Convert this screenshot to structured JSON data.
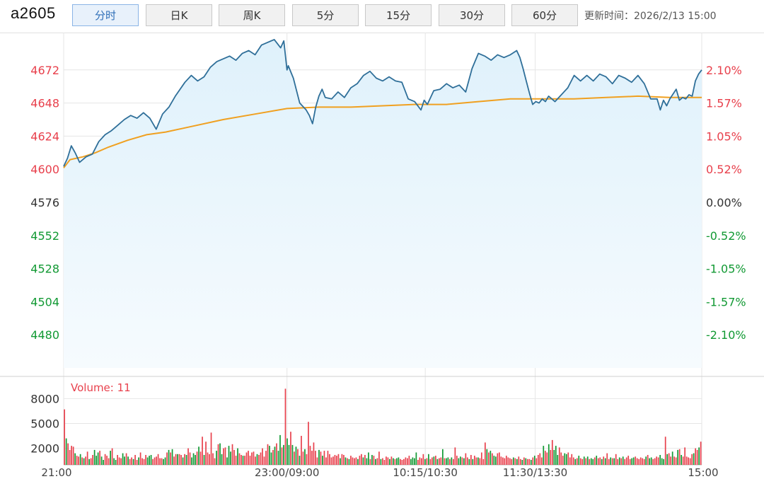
{
  "toolbar": {
    "symbol": "a2605",
    "tabs": [
      {
        "label": "分时",
        "active": true
      },
      {
        "label": "日K",
        "active": false
      },
      {
        "label": "周K",
        "active": false
      },
      {
        "label": "5分",
        "active": false
      },
      {
        "label": "15分",
        "active": false
      },
      {
        "label": "30分",
        "active": false
      },
      {
        "label": "60分",
        "active": false
      }
    ],
    "update_time": "更新时间：2026/2/13 15:00"
  },
  "colors": {
    "up": "#e8404c",
    "down": "#119933",
    "neutral": "#333333",
    "price_line": "#2f6f99",
    "avg_line": "#f0a020",
    "area_fill_top": "#dff1fb",
    "area_fill_bottom": "#f6fbfe",
    "grid": "#e6e6e6"
  },
  "chart_data": [
    {
      "type": "line",
      "title": "",
      "prev_close": 4576,
      "ylim": [
        4456,
        4696
      ],
      "y_ticks": [
        "4672",
        "4648",
        "4624",
        "4600",
        "4576",
        "4552",
        "4528",
        "4504",
        "4480"
      ],
      "y_tick_values": [
        4672,
        4648,
        4624,
        4600,
        4576,
        4552,
        4528,
        4504,
        4480
      ],
      "pct_ticks": [
        "2.10%",
        "1.57%",
        "1.05%",
        "0.52%",
        "0.00%",
        "-0.52%",
        "-1.05%",
        "-1.57%",
        "-2.10%"
      ],
      "x_ticks": [
        "21:00",
        "23:00/09:00",
        "10:15/10:30",
        "11:30/13:30",
        "15:00"
      ],
      "x_tick_positions": [
        0,
        0.35,
        0.5667,
        0.7389,
        1.0
      ],
      "series": [
        {
          "role": "price",
          "x": [
            0,
            0.006,
            0.012,
            0.018,
            0.025,
            0.035,
            0.045,
            0.055,
            0.065,
            0.075,
            0.085,
            0.095,
            0.105,
            0.115,
            0.125,
            0.135,
            0.145,
            0.155,
            0.165,
            0.175,
            0.19,
            0.2,
            0.21,
            0.22,
            0.23,
            0.24,
            0.25,
            0.26,
            0.27,
            0.28,
            0.29,
            0.3,
            0.31,
            0.32,
            0.33,
            0.34,
            0.345,
            0.35,
            0.352,
            0.36,
            0.37,
            0.38,
            0.385,
            0.39,
            0.395,
            0.4,
            0.405,
            0.41,
            0.42,
            0.43,
            0.44,
            0.45,
            0.46,
            0.47,
            0.48,
            0.49,
            0.5,
            0.51,
            0.52,
            0.53,
            0.54,
            0.55,
            0.56,
            0.565,
            0.57,
            0.58,
            0.59,
            0.6,
            0.61,
            0.62,
            0.63,
            0.64,
            0.65,
            0.66,
            0.67,
            0.68,
            0.69,
            0.7,
            0.71,
            0.715,
            0.72,
            0.725,
            0.73,
            0.735,
            0.74,
            0.745,
            0.75,
            0.755,
            0.76,
            0.77,
            0.78,
            0.79,
            0.8,
            0.81,
            0.82,
            0.83,
            0.84,
            0.85,
            0.86,
            0.87,
            0.88,
            0.89,
            0.9,
            0.91,
            0.92,
            0.93,
            0.935,
            0.94,
            0.945,
            0.95,
            0.96,
            0.965,
            0.97,
            0.975,
            0.98,
            0.985,
            0.99,
            0.995,
            1.0
          ],
          "values": [
            4602,
            4608,
            4617,
            4612,
            4605,
            4609,
            4611,
            4620,
            4625,
            4628,
            4632,
            4636,
            4639,
            4637,
            4641,
            4637,
            4629,
            4640,
            4645,
            4653,
            4663,
            4668,
            4664,
            4667,
            4674,
            4678,
            4680,
            4682,
            4679,
            4684,
            4686,
            4683,
            4690,
            4692,
            4694,
            4688,
            4693,
            4672,
            4675,
            4666,
            4648,
            4643,
            4639,
            4633,
            4645,
            4653,
            4658,
            4652,
            4651,
            4656,
            4652,
            4659,
            4662,
            4668,
            4671,
            4666,
            4664,
            4667,
            4664,
            4663,
            4651,
            4649,
            4643,
            4650,
            4647,
            4657,
            4658,
            4662,
            4659,
            4661,
            4656,
            4673,
            4684,
            4682,
            4679,
            4683,
            4681,
            4683,
            4686,
            4681,
            4673,
            4664,
            4655,
            4647,
            4649,
            4648,
            4651,
            4649,
            4653,
            4649,
            4654,
            4659,
            4668,
            4664,
            4668,
            4664,
            4669,
            4667,
            4662,
            4668,
            4666,
            4663,
            4668,
            4662,
            4651,
            4651,
            4643,
            4650,
            4646,
            4651,
            4658,
            4650,
            4652,
            4651,
            4654,
            4653,
            4664,
            4669,
            4672
          ]
        },
        {
          "role": "average",
          "x": [
            0,
            0.01,
            0.02,
            0.03,
            0.05,
            0.07,
            0.1,
            0.13,
            0.16,
            0.2,
            0.25,
            0.3,
            0.35,
            0.4,
            0.45,
            0.5,
            0.55,
            0.6,
            0.65,
            0.7,
            0.75,
            0.8,
            0.85,
            0.9,
            0.95,
            1.0
          ],
          "values": [
            4601,
            4607,
            4608,
            4609,
            4612,
            4616,
            4621,
            4625,
            4627,
            4631,
            4636,
            4640,
            4644,
            4645,
            4645,
            4646,
            4647,
            4647,
            4649,
            4651,
            4651,
            4651,
            4652,
            4653,
            4652,
            4652
          ]
        }
      ]
    },
    {
      "type": "bar",
      "title": "",
      "volume_label": "Volume: 11",
      "ylim": [
        0,
        10000
      ],
      "y_ticks": [
        "8000",
        "5000",
        "2000"
      ],
      "y_tick_values": [
        8000,
        5000,
        2000
      ],
      "note": "per-minute volume, colored by tick direction",
      "values": [
        6700,
        3200,
        2600,
        1800,
        2300,
        2200,
        1400,
        1100,
        1000,
        1300,
        900,
        800,
        1000,
        1600,
        700,
        800,
        1200,
        1800,
        1100,
        1500,
        1700,
        1000,
        600,
        1300,
        1100,
        800,
        1700,
        2000,
        800,
        600,
        1200,
        900,
        800,
        1400,
        1000,
        1400,
        1000,
        700,
        900,
        700,
        1200,
        600,
        900,
        1500,
        800,
        700,
        1200,
        900,
        1100,
        1200,
        700,
        900,
        1000,
        1300,
        800,
        800,
        700,
        900,
        1500,
        1800,
        1500,
        1900,
        1000,
        1300,
        1300,
        1300,
        1200,
        900,
        1300,
        1200,
        2000,
        1500,
        900,
        1400,
        1200,
        1600,
        2200,
        1600,
        3400,
        1200,
        2800,
        1500,
        1300,
        3900,
        1400,
        800,
        1700,
        2500,
        2600,
        1300,
        2000,
        2100,
        900,
        2300,
        1600,
        2500,
        1800,
        1100,
        2000,
        1400,
        1200,
        1100,
        1100,
        1500,
        1700,
        1100,
        1500,
        1600,
        1000,
        1300,
        1200,
        1500,
        2000,
        1000,
        1700,
        2500,
        2300,
        1500,
        1800,
        2200,
        2600,
        1700,
        3600,
        2100,
        2400,
        9200,
        3200,
        2400,
        4000,
        2400,
        1600,
        2200,
        1900,
        1100,
        3500,
        1600,
        1900,
        1300,
        5200,
        2300,
        1700,
        2700,
        1700,
        900,
        1800,
        1600,
        1100,
        1700,
        900,
        1700,
        1300,
        900,
        1000,
        1200,
        1100,
        1300,
        800,
        1300,
        1200,
        900,
        800,
        700,
        1100,
        900,
        800,
        900,
        700,
        1100,
        1300,
        900,
        1200,
        800,
        1500,
        700,
        1200,
        1100,
        700,
        800,
        1600,
        700,
        800,
        600,
        1000,
        900,
        700,
        1000,
        800,
        700,
        800,
        900,
        700,
        600,
        700,
        900,
        800,
        1100,
        700,
        900,
        800,
        1500,
        600,
        900,
        800,
        1300,
        700,
        800,
        1300,
        700,
        900,
        1000,
        1100,
        700,
        800,
        900,
        1900,
        800,
        800,
        900,
        700,
        900,
        700,
        2100,
        1100,
        800,
        1000,
        900,
        800,
        1400,
        900,
        700,
        1200,
        700,
        1100,
        900,
        900,
        800,
        1500,
        700,
        2700,
        1900,
        1500,
        1700,
        1400,
        1100,
        1000,
        1400,
        1500,
        1000,
        900,
        800,
        1100,
        900,
        800,
        700,
        900,
        800,
        700,
        1000,
        700,
        600,
        900,
        800,
        700,
        700,
        600,
        900,
        1100,
        800,
        1200,
        1400,
        900,
        2300,
        1700,
        1500,
        2500,
        1800,
        3000,
        1800,
        2300,
        1200,
        2100,
        1500,
        1100,
        1400,
        1300,
        1500,
        900,
        1300,
        900,
        700,
        800,
        1100,
        800,
        700,
        1000,
        800,
        1000,
        700,
        800,
        700,
        900,
        1100,
        800,
        900,
        700,
        1000,
        800,
        1400,
        700,
        900,
        800,
        800,
        1300,
        700,
        900,
        800,
        1000,
        700,
        900,
        1100,
        700,
        800,
        900,
        1000,
        800,
        700,
        900,
        800,
        700,
        1000,
        1200,
        800,
        900,
        700,
        800,
        1000,
        900,
        1200,
        800,
        700,
        3400,
        1300,
        1400,
        1000,
        1600,
        1000,
        900,
        1800,
        1900,
        1200,
        1000,
        2100,
        1000,
        900,
        800,
        1300,
        1400,
        2000,
        1800,
        2100,
        2800
      ],
      "directions": "mixed"
    }
  ]
}
